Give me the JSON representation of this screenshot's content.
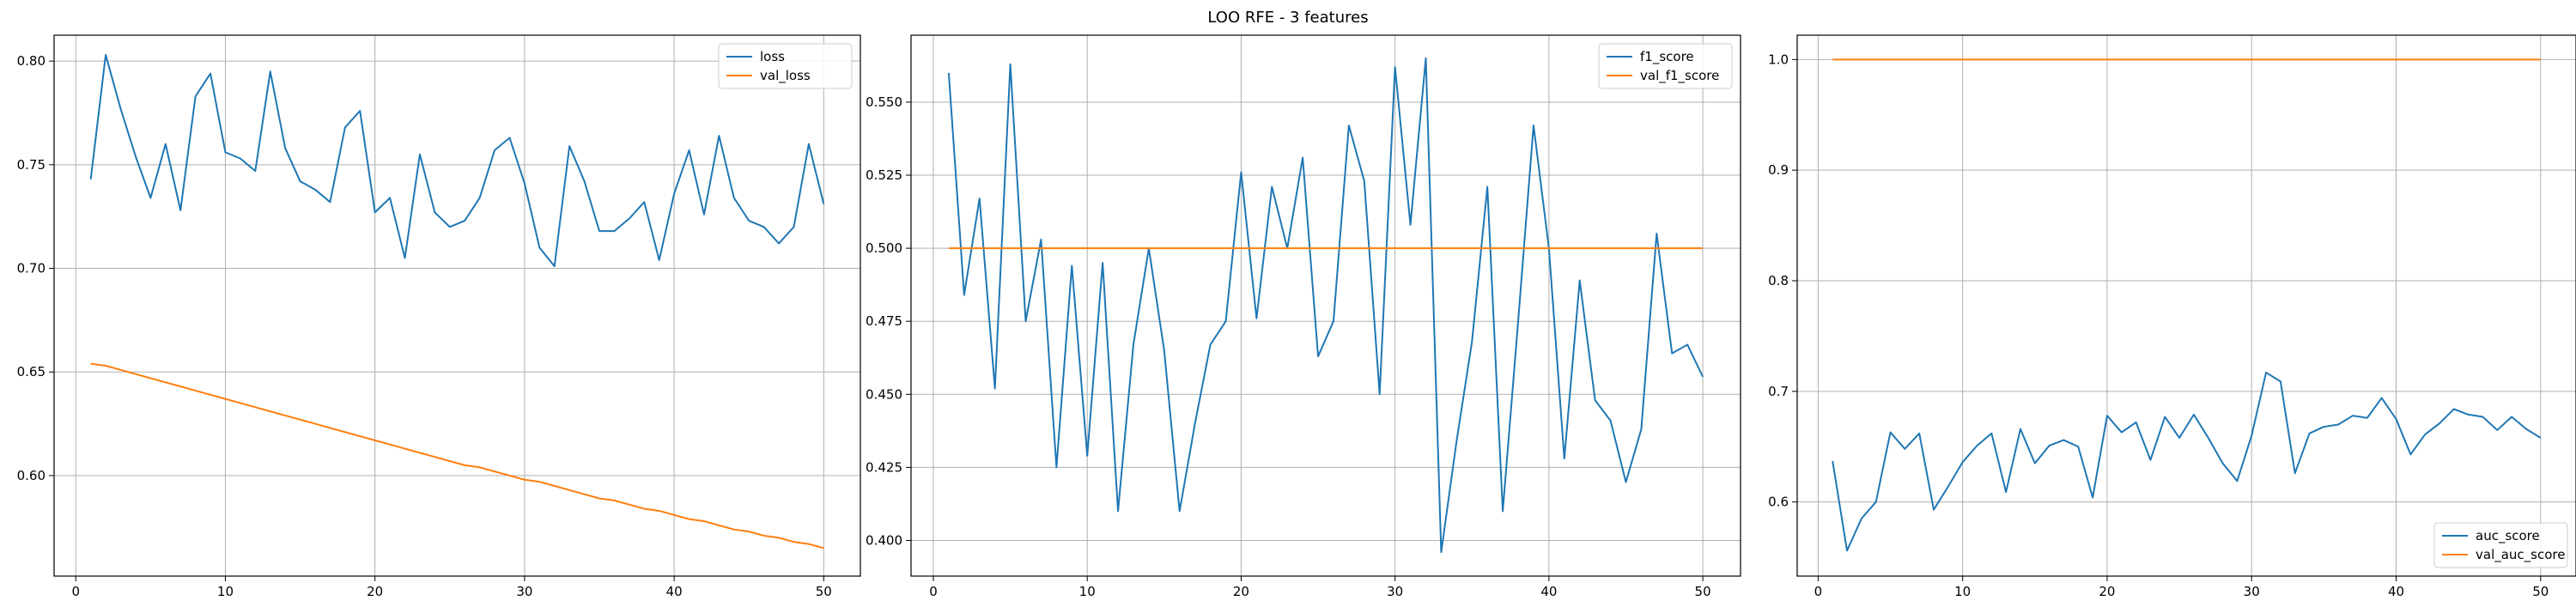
{
  "figure": {
    "suptitle": "LOO RFE - 3 features"
  },
  "colors": {
    "series1": "#1f77b4",
    "series2": "#ff7f0e",
    "grid": "#b0b0b0",
    "axes": "#000000"
  },
  "chart_data": [
    {
      "type": "line",
      "title": "",
      "xlabel": "",
      "ylabel": "",
      "xlim": [
        -1.45,
        52.45
      ],
      "ylim": [
        0.5515,
        0.8125
      ],
      "xticks": [
        0,
        10,
        20,
        30,
        40,
        50
      ],
      "yticks": [
        0.6,
        0.65,
        0.7,
        0.75,
        0.8
      ],
      "ytick_labels": [
        "0.60",
        "0.65",
        "0.70",
        "0.75",
        "0.80"
      ],
      "grid": true,
      "legend_position": "top-right",
      "x": [
        1,
        2,
        3,
        4,
        5,
        6,
        7,
        8,
        9,
        10,
        11,
        12,
        13,
        14,
        15,
        16,
        17,
        18,
        19,
        20,
        21,
        22,
        23,
        24,
        25,
        26,
        27,
        28,
        29,
        30,
        31,
        32,
        33,
        34,
        35,
        36,
        37,
        38,
        39,
        40,
        41,
        42,
        43,
        44,
        45,
        46,
        47,
        48,
        49,
        50
      ],
      "series": [
        {
          "name": "loss",
          "color": "#1f77b4",
          "values": [
            0.743,
            0.803,
            0.777,
            0.754,
            0.734,
            0.76,
            0.728,
            0.783,
            0.794,
            0.756,
            0.753,
            0.747,
            0.795,
            0.758,
            0.742,
            0.738,
            0.732,
            0.768,
            0.776,
            0.727,
            0.734,
            0.705,
            0.755,
            0.727,
            0.72,
            0.723,
            0.734,
            0.757,
            0.763,
            0.741,
            0.71,
            0.701,
            0.759,
            0.742,
            0.718,
            0.718,
            0.724,
            0.732,
            0.704,
            0.736,
            0.757,
            0.726,
            0.764,
            0.734,
            0.723,
            0.72,
            0.712,
            0.72,
            0.76,
            0.731
          ]
        },
        {
          "name": "val_loss",
          "color": "#ff7f0e",
          "values": [
            0.654,
            0.653,
            0.651,
            0.649,
            0.647,
            0.645,
            0.643,
            0.641,
            0.639,
            0.637,
            0.635,
            0.633,
            0.631,
            0.629,
            0.627,
            0.625,
            0.623,
            0.621,
            0.619,
            0.617,
            0.615,
            0.613,
            0.611,
            0.609,
            0.607,
            0.605,
            0.604,
            0.602,
            0.6,
            0.598,
            0.597,
            0.595,
            0.593,
            0.591,
            0.589,
            0.588,
            0.586,
            0.584,
            0.583,
            0.581,
            0.579,
            0.578,
            0.576,
            0.574,
            0.573,
            0.571,
            0.57,
            0.568,
            0.567,
            0.565
          ]
        }
      ]
    },
    {
      "type": "line",
      "title": "",
      "xlabel": "",
      "ylabel": "",
      "xlim": [
        -1.45,
        52.45
      ],
      "ylim": [
        0.3878,
        0.5729
      ],
      "xticks": [
        0,
        10,
        20,
        30,
        40,
        50
      ],
      "yticks": [
        0.4,
        0.425,
        0.45,
        0.475,
        0.5,
        0.525,
        0.55
      ],
      "ytick_labels": [
        "0.400",
        "0.425",
        "0.450",
        "0.475",
        "0.500",
        "0.525",
        "0.550"
      ],
      "grid": true,
      "legend_position": "top-right",
      "x": [
        1,
        2,
        3,
        4,
        5,
        6,
        7,
        8,
        9,
        10,
        11,
        12,
        13,
        14,
        15,
        16,
        17,
        18,
        19,
        20,
        21,
        22,
        23,
        24,
        25,
        26,
        27,
        28,
        29,
        30,
        31,
        32,
        33,
        34,
        35,
        36,
        37,
        38,
        39,
        40,
        41,
        42,
        43,
        44,
        45,
        46,
        47,
        48,
        49,
        50
      ],
      "series": [
        {
          "name": "f1_score",
          "color": "#1f77b4",
          "values": [
            0.56,
            0.484,
            0.517,
            0.452,
            0.563,
            0.475,
            0.503,
            0.425,
            0.494,
            0.429,
            0.495,
            0.41,
            0.467,
            0.5,
            0.465,
            0.41,
            0.44,
            0.467,
            0.475,
            0.526,
            0.476,
            0.521,
            0.5,
            0.531,
            0.463,
            0.475,
            0.542,
            0.523,
            0.45,
            0.562,
            0.508,
            0.565,
            0.396,
            0.434,
            0.468,
            0.521,
            0.41,
            0.475,
            0.542,
            0.5,
            0.428,
            0.489,
            0.448,
            0.441,
            0.42,
            0.438,
            0.505,
            0.464,
            0.467,
            0.456
          ]
        },
        {
          "name": "val_f1_score",
          "color": "#ff7f0e",
          "values": [
            0.5,
            0.5,
            0.5,
            0.5,
            0.5,
            0.5,
            0.5,
            0.5,
            0.5,
            0.5,
            0.5,
            0.5,
            0.5,
            0.5,
            0.5,
            0.5,
            0.5,
            0.5,
            0.5,
            0.5,
            0.5,
            0.5,
            0.5,
            0.5,
            0.5,
            0.5,
            0.5,
            0.5,
            0.5,
            0.5,
            0.5,
            0.5,
            0.5,
            0.5,
            0.5,
            0.5,
            0.5,
            0.5,
            0.5,
            0.5,
            0.5,
            0.5,
            0.5,
            0.5,
            0.5,
            0.5,
            0.5,
            0.5,
            0.5,
            0.5
          ]
        }
      ]
    },
    {
      "type": "line",
      "title": "",
      "xlabel": "",
      "ylabel": "",
      "xlim": [
        -1.45,
        52.45
      ],
      "ylim": [
        0.533,
        1.022
      ],
      "xticks": [
        0,
        10,
        20,
        30,
        40,
        50
      ],
      "yticks": [
        0.6,
        0.7,
        0.8,
        0.9,
        1.0
      ],
      "ytick_labels": [
        "0.6",
        "0.7",
        "0.8",
        "0.9",
        "1.0"
      ],
      "grid": true,
      "legend_position": "bottom-right",
      "x": [
        1,
        2,
        3,
        4,
        5,
        6,
        7,
        8,
        9,
        10,
        11,
        12,
        13,
        14,
        15,
        16,
        17,
        18,
        19,
        20,
        21,
        22,
        23,
        24,
        25,
        26,
        27,
        28,
        29,
        30,
        31,
        32,
        33,
        34,
        35,
        36,
        37,
        38,
        39,
        40,
        41,
        42,
        43,
        44,
        45,
        46,
        47,
        48,
        49,
        50
      ],
      "series": [
        {
          "name": "auc_score",
          "color": "#1f77b4",
          "values": [
            0.637,
            0.556,
            0.585,
            0.6,
            0.663,
            0.648,
            0.662,
            0.593,
            0.614,
            0.636,
            0.651,
            0.662,
            0.609,
            0.666,
            0.635,
            0.651,
            0.656,
            0.65,
            0.604,
            0.678,
            0.663,
            0.672,
            0.638,
            0.677,
            0.658,
            0.679,
            0.658,
            0.635,
            0.619,
            0.66,
            0.717,
            0.709,
            0.626,
            0.662,
            0.668,
            0.67,
            0.678,
            0.676,
            0.694,
            0.675,
            0.643,
            0.661,
            0.671,
            0.684,
            0.679,
            0.677,
            0.665,
            0.677,
            0.666,
            0.658
          ]
        },
        {
          "name": "val_auc_score",
          "color": "#ff7f0e",
          "values": [
            1.0,
            1.0,
            1.0,
            1.0,
            1.0,
            1.0,
            1.0,
            1.0,
            1.0,
            1.0,
            1.0,
            1.0,
            1.0,
            1.0,
            1.0,
            1.0,
            1.0,
            1.0,
            1.0,
            1.0,
            1.0,
            1.0,
            1.0,
            1.0,
            1.0,
            1.0,
            1.0,
            1.0,
            1.0,
            1.0,
            1.0,
            1.0,
            1.0,
            1.0,
            1.0,
            1.0,
            1.0,
            1.0,
            1.0,
            1.0,
            1.0,
            1.0,
            1.0,
            1.0,
            1.0,
            1.0,
            1.0,
            1.0,
            1.0,
            1.0
          ]
        }
      ]
    }
  ]
}
